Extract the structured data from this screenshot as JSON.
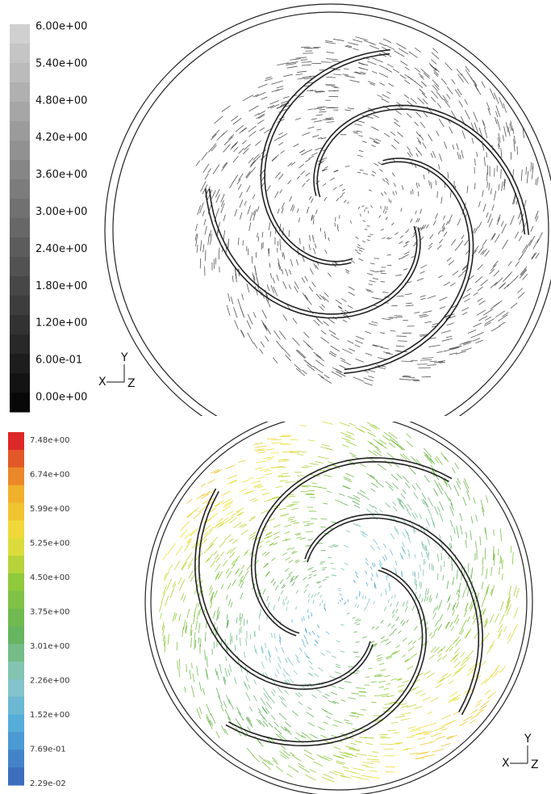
{
  "panels": [
    {
      "colorbar_labels": [
        "6.00e+00",
        "5.40e+00",
        "4.80e+00",
        "4.20e+00",
        "3.60e+00",
        "3.00e+00",
        "2.40e+00",
        "1.80e+00",
        "1.20e+00",
        "6.00e-01",
        "0.00e+00"
      ],
      "axes": {
        "x": "X",
        "y": "Y",
        "z": "Z"
      }
    },
    {
      "colorbar_labels": [
        "7.48e+00",
        "6.74e+00",
        "5.99e+00",
        "5.25e+00",
        "4.50e+00",
        "3.75e+00",
        "3.01e+00",
        "2.26e+00",
        "1.52e+00",
        "7.69e-01",
        "2.29e-02"
      ],
      "axes": {
        "x": "X",
        "y": "Y",
        "z": "Z"
      }
    }
  ]
}
